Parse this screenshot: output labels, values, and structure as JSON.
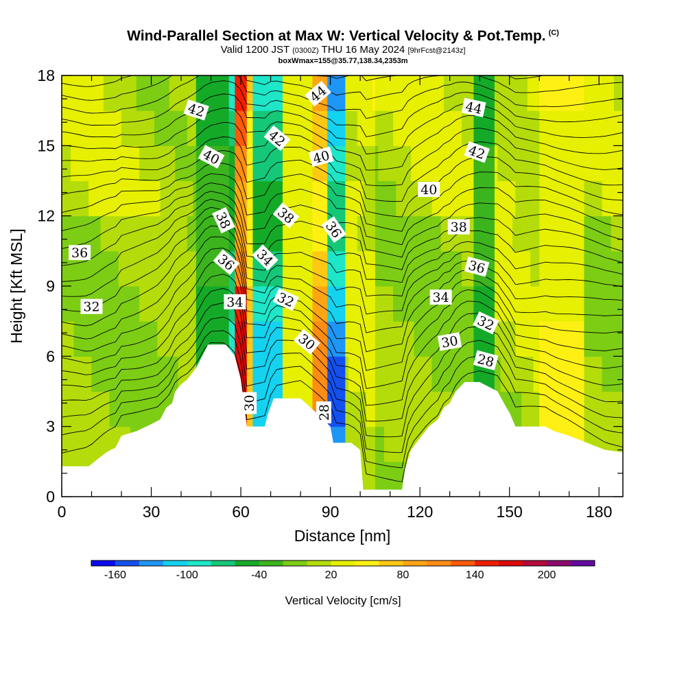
{
  "header": {
    "title": "Wind-Parallel Section at Max W: Vertical Velocity & Pot.Temp.",
    "copyright": "(C)",
    "valid_prefix": "Valid 1200 JST",
    "valid_zulu": "(0300Z)",
    "valid_date": "THU 16 May 2024",
    "forecast": "[9hrFcst@2143z]",
    "box_info": "boxWmax=155@35.77,138.34,2353m"
  },
  "chart_data": {
    "type": "heatmap",
    "xlabel": "Distance [nm]",
    "ylabel": "Height [Kft MSL]",
    "x_range": [
      0,
      188
    ],
    "y_range": [
      0,
      18
    ],
    "x_ticks": [
      0,
      30,
      60,
      90,
      120,
      150,
      180
    ],
    "y_ticks": [
      0,
      3,
      6,
      9,
      12,
      15,
      18
    ],
    "colorbar": {
      "title": "Vertical Velocity [cm/s]",
      "min": -180,
      "max": 240,
      "step": 20,
      "tick_values": [
        -160,
        -100,
        -40,
        20,
        80,
        140,
        200
      ],
      "tick_labels": [
        "-160",
        "-100",
        "-40",
        "20",
        "80",
        "140",
        "200"
      ],
      "colors": [
        "#0a0aee",
        "#1450f0",
        "#1e96f5",
        "#14d2f0",
        "#1ee6c8",
        "#14c878",
        "#14aa28",
        "#3cb41e",
        "#7ccd14",
        "#b4dc0a",
        "#e6f000",
        "#fff014",
        "#ffc814",
        "#ffa514",
        "#ff8c14",
        "#ff5a0a",
        "#f01e00",
        "#dc0a0a",
        "#b40a3c",
        "#8c0a6e",
        "#640aa0"
      ]
    },
    "terrain_profile_kft": [
      [
        0,
        1.3
      ],
      [
        9,
        1.3
      ],
      [
        12,
        1.6
      ],
      [
        15,
        1.9
      ],
      [
        18,
        2.1
      ],
      [
        20,
        2.6
      ],
      [
        25,
        2.8
      ],
      [
        30,
        3.1
      ],
      [
        33,
        3.3
      ],
      [
        35,
        3.8
      ],
      [
        37,
        4.0
      ],
      [
        38,
        4.5
      ],
      [
        40,
        4.8
      ],
      [
        42,
        5.0
      ],
      [
        45,
        5.5
      ],
      [
        47,
        6.0
      ],
      [
        49,
        6.5
      ],
      [
        55,
        6.5
      ],
      [
        58,
        6.0
      ],
      [
        60,
        5.0
      ],
      [
        62,
        3.0
      ],
      [
        68,
        3.0
      ],
      [
        69,
        3.5
      ],
      [
        71,
        4.2
      ],
      [
        80,
        4.2
      ],
      [
        86,
        3.5
      ],
      [
        90,
        3.0
      ],
      [
        91,
        2.3
      ],
      [
        97,
        2.3
      ],
      [
        100,
        2.0
      ],
      [
        101,
        0.3
      ],
      [
        114,
        0.3
      ],
      [
        115,
        1.2
      ],
      [
        117,
        2.0
      ],
      [
        120,
        2.5
      ],
      [
        123,
        3.0
      ],
      [
        126,
        3.3
      ],
      [
        128,
        3.8
      ],
      [
        130,
        4.0
      ],
      [
        132,
        4.5
      ],
      [
        135,
        4.9
      ],
      [
        140,
        4.9
      ],
      [
        146,
        4.5
      ],
      [
        149,
        3.8
      ],
      [
        150,
        3.6
      ],
      [
        152,
        3.0
      ],
      [
        162,
        3.0
      ],
      [
        165,
        2.8
      ],
      [
        170,
        2.6
      ],
      [
        176,
        2.3
      ],
      [
        182,
        2.0
      ],
      [
        188,
        1.9
      ]
    ],
    "vertical_velocity_cm_s": {
      "description_bands": [
        {
          "x_start": 0,
          "x_end": 45,
          "value": 0
        },
        {
          "x_start": 45,
          "x_end": 56,
          "value": -60
        },
        {
          "x_start": 56,
          "x_end": 58,
          "value": -100
        },
        {
          "x_start": 58,
          "x_end": 62,
          "value": 180
        },
        {
          "x_start": 62,
          "x_end": 64,
          "value": 80
        },
        {
          "x_start": 64,
          "x_end": 74,
          "value": -110
        },
        {
          "x_start": 74,
          "x_end": 84,
          "value": 40
        },
        {
          "x_start": 84,
          "x_end": 89,
          "value": 110
        },
        {
          "x_start": 89,
          "x_end": 95,
          "value": -150
        },
        {
          "x_start": 95,
          "x_end": 105,
          "value": 20
        },
        {
          "x_start": 105,
          "x_end": 138,
          "value": 0
        },
        {
          "x_start": 138,
          "x_end": 145,
          "value": -60
        },
        {
          "x_start": 145,
          "x_end": 160,
          "value": 10
        },
        {
          "x_start": 160,
          "x_end": 175,
          "value": 50
        },
        {
          "x_start": 175,
          "x_end": 188,
          "value": 0
        }
      ]
    },
    "theta_contour_labels": [
      {
        "value": "36",
        "x": 6,
        "y": 10.4,
        "angle": 0
      },
      {
        "value": "32",
        "x": 10,
        "y": 8.1,
        "angle": 0
      },
      {
        "value": "42",
        "x": 45,
        "y": 16.5,
        "angle": 18
      },
      {
        "value": "40",
        "x": 50,
        "y": 14.5,
        "angle": 28
      },
      {
        "value": "38",
        "x": 54,
        "y": 11.8,
        "angle": 65
      },
      {
        "value": "36",
        "x": 55,
        "y": 10.0,
        "angle": 40
      },
      {
        "value": "34",
        "x": 58,
        "y": 8.3,
        "angle": 0
      },
      {
        "value": "30",
        "x": 63,
        "y": 4.0,
        "angle": -90
      },
      {
        "value": "42",
        "x": 72,
        "y": 15.3,
        "angle": 40
      },
      {
        "value": "38",
        "x": 75,
        "y": 12.0,
        "angle": 40
      },
      {
        "value": "34",
        "x": 68,
        "y": 10.2,
        "angle": 45
      },
      {
        "value": "32",
        "x": 75,
        "y": 8.4,
        "angle": 25
      },
      {
        "value": "30",
        "x": 82,
        "y": 6.6,
        "angle": 40
      },
      {
        "value": "44",
        "x": 86,
        "y": 17.2,
        "angle": -40
      },
      {
        "value": "40",
        "x": 87,
        "y": 14.5,
        "angle": -15
      },
      {
        "value": "36",
        "x": 91,
        "y": 11.4,
        "angle": 55
      },
      {
        "value": "28",
        "x": 88,
        "y": 3.6,
        "angle": -90
      },
      {
        "value": "44",
        "x": 138,
        "y": 16.6,
        "angle": 12
      },
      {
        "value": "42",
        "x": 139,
        "y": 14.7,
        "angle": 20
      },
      {
        "value": "40",
        "x": 123,
        "y": 13.1,
        "angle": 0
      },
      {
        "value": "38",
        "x": 133,
        "y": 11.5,
        "angle": 0
      },
      {
        "value": "36",
        "x": 139,
        "y": 9.8,
        "angle": 15
      },
      {
        "value": "34",
        "x": 127,
        "y": 8.5,
        "angle": 0
      },
      {
        "value": "32",
        "x": 142,
        "y": 7.4,
        "angle": 25
      },
      {
        "value": "30",
        "x": 130,
        "y": 6.6,
        "angle": -10
      },
      {
        "value": "28",
        "x": 142,
        "y": 5.8,
        "angle": 15
      }
    ]
  }
}
